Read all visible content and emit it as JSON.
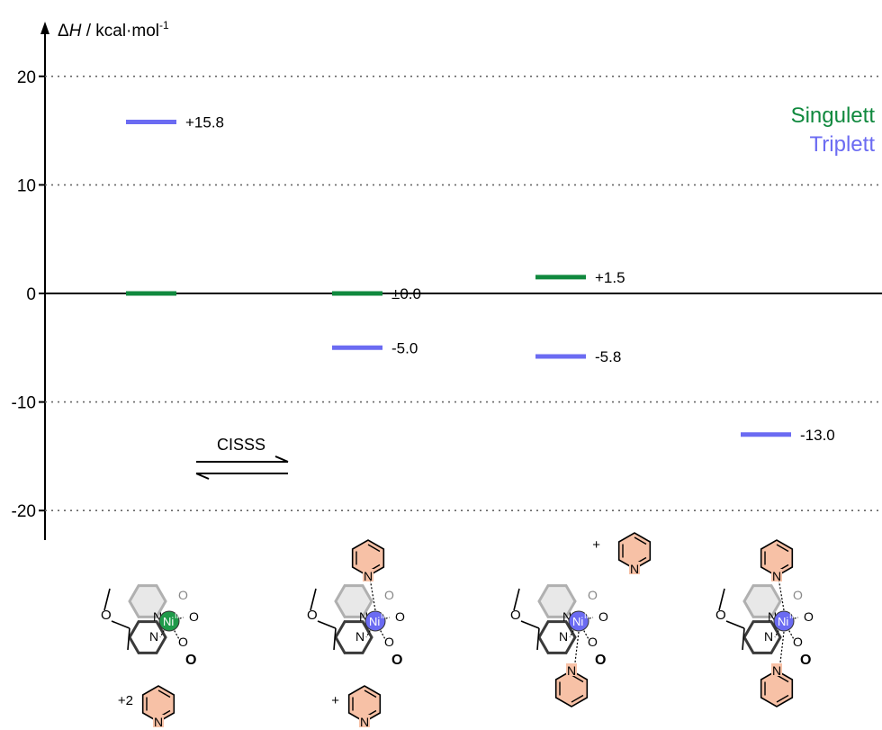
{
  "chart_data": {
    "type": "energy-level",
    "ylabel_prefix": "Δ",
    "ylabel_symbol": "H",
    "ylabel_unit": " / kcal·mol",
    "ylabel_exp": "-1",
    "yticks": [
      20,
      10,
      0,
      -10,
      -20
    ],
    "ylim": [
      -23,
      25
    ],
    "grid": "dotted",
    "legend": {
      "placement": "top-right",
      "entries": [
        {
          "name": "Singulett",
          "color": "#10893e"
        },
        {
          "name": "Triplett",
          "color": "#6b6bf2"
        }
      ]
    },
    "arrow_label": "CISSS",
    "levels": [
      {
        "column": 0,
        "state": "Singulett",
        "value": 0,
        "label": ""
      },
      {
        "column": 0,
        "state": "Triplett",
        "value": 15.8,
        "label": "+15.8"
      },
      {
        "column": 1,
        "state": "Singulett",
        "value": 0,
        "label": "±0.0"
      },
      {
        "column": 1,
        "state": "Triplett",
        "value": -5.0,
        "label": "-5.0"
      },
      {
        "column": 2,
        "state": "Singulett",
        "value": 1.5,
        "label": "+1.5"
      },
      {
        "column": 2,
        "state": "Triplett",
        "value": -5.8,
        "label": "-5.8"
      },
      {
        "column": 3,
        "state": "Triplett",
        "value": -13.0,
        "label": "-13.0"
      }
    ]
  },
  "structures": [
    {
      "metal": "Ni",
      "ox": "II",
      "metal_color": "#1f9a4a",
      "pyr_top": false,
      "pyr_bottom": false,
      "free_prefix": "+2",
      "free_pos": "bottom"
    },
    {
      "metal": "Ni",
      "ox": "II",
      "metal_color": "#6b6bf2",
      "pyr_top": true,
      "pyr_bottom": false,
      "free_prefix": "+",
      "free_pos": "bottom"
    },
    {
      "metal": "Ni",
      "ox": "II",
      "metal_color": "#6b6bf2",
      "pyr_top": false,
      "pyr_bottom": true,
      "free_prefix": "+",
      "free_pos": "top"
    },
    {
      "metal": "Ni",
      "ox": "II",
      "metal_color": "#6b6bf2",
      "pyr_top": true,
      "pyr_bottom": true,
      "free_prefix": "",
      "free_pos": "none"
    }
  ],
  "atoms": {
    "N": "N",
    "O": "O"
  },
  "colors": {
    "pyridine_fill": "#f7c1a6",
    "ring_grey": "#b0b0b0",
    "ring_dark": "#3a3a3a"
  }
}
